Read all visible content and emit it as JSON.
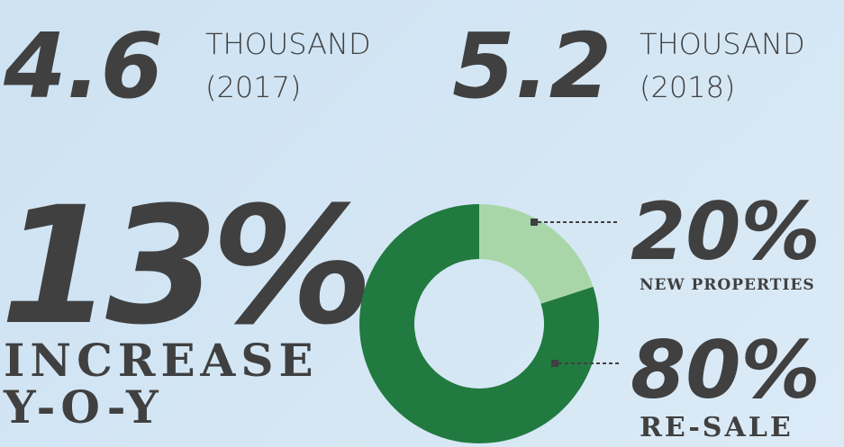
{
  "stats": {
    "first": {
      "value": "4.6",
      "unit": "THOUSAND",
      "year": "(2017)"
    },
    "second": {
      "value": "5.2",
      "unit": "THOUSAND",
      "year": "(2018)"
    },
    "growth": {
      "value": "13%",
      "line1": "INCREASE",
      "line2": "Y-O-Y"
    }
  },
  "chart_data": {
    "type": "pie",
    "donut": true,
    "categories": [
      "NEW PROPERTIES",
      "RE-SALE"
    ],
    "values": [
      20,
      80
    ],
    "value_labels": [
      "20%",
      "80%"
    ],
    "colors": [
      "#a9d6a9",
      "#217a40"
    ]
  }
}
